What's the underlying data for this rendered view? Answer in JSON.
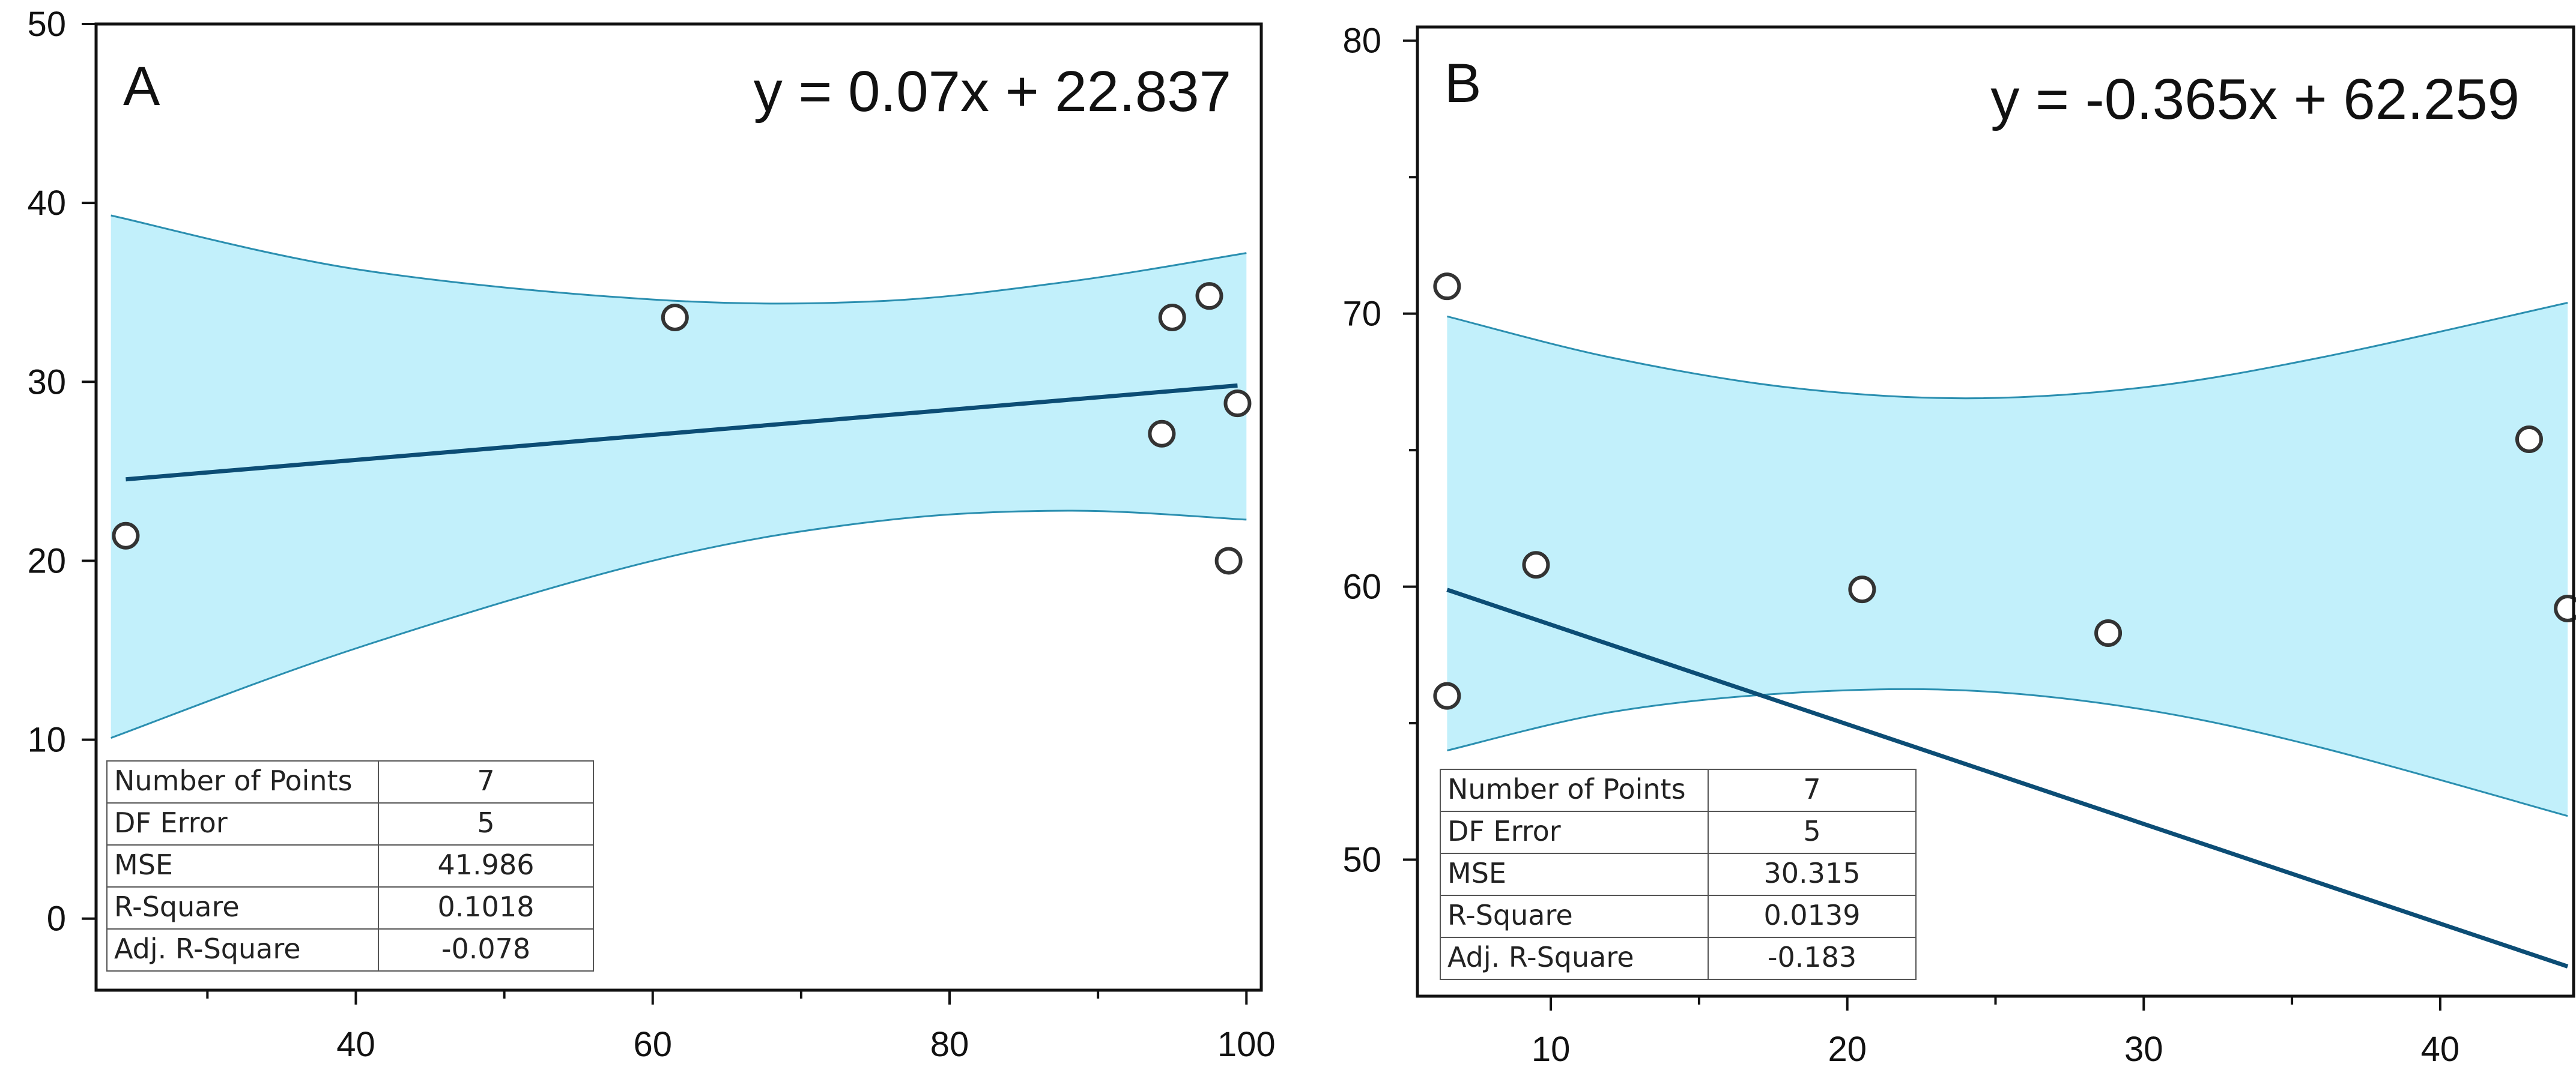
{
  "chart_data": [
    {
      "panel": "A",
      "type": "scatter",
      "title": "",
      "xlabel": "",
      "ylabel": "",
      "xlim": [
        22.5,
        101
      ],
      "ylim": [
        -4,
        50
      ],
      "xticks": [
        40,
        60,
        80,
        100
      ],
      "xminor": [
        30,
        50,
        70,
        90
      ],
      "yticks": [
        0,
        10,
        20,
        30,
        40,
        50
      ],
      "points": {
        "x": [
          24.5,
          61.5,
          94.3,
          95.0,
          97.5,
          98.8,
          99.4
        ],
        "y": [
          21.4,
          33.6,
          27.1,
          33.6,
          34.8,
          20.0,
          28.8
        ]
      },
      "fit": {
        "slope": 0.07,
        "intercept": 22.837,
        "x_start": 24.5,
        "x_end": 99.4
      },
      "band": {
        "x": [
          23.5,
          40,
          60,
          75,
          88,
          100
        ],
        "upper": [
          39.3,
          36.3,
          34.6,
          34.5,
          35.6,
          37.2
        ],
        "lower": [
          10.1,
          15.1,
          20.0,
          22.2,
          22.8,
          22.3
        ]
      },
      "equation": "y = 0.07x + 22.837",
      "stats": [
        {
          "label": "Number of Points",
          "value": "7"
        },
        {
          "label": "DF Error",
          "value": "5"
        },
        {
          "label": "MSE",
          "value": "41.986"
        },
        {
          "label": "R-Square",
          "value": "0.1018"
        },
        {
          "label": "Adj. R-Square",
          "value": "-0.078"
        }
      ]
    },
    {
      "panel": "B",
      "type": "scatter",
      "title": "",
      "xlabel": "",
      "ylabel": "",
      "xlim": [
        5.5,
        44.5
      ],
      "ylim": [
        45,
        80.5
      ],
      "xticks": [
        10,
        20,
        30,
        40
      ],
      "xminor": [
        15,
        25,
        35
      ],
      "yticks": [
        50,
        60,
        70,
        80
      ],
      "yminor": [
        55,
        65,
        75
      ],
      "points": {
        "x": [
          6.5,
          6.5,
          9.5,
          20.5,
          28.8,
          43.0,
          44.3
        ],
        "y": [
          71.0,
          56.0,
          60.8,
          59.9,
          58.3,
          65.4,
          59.2
        ]
      },
      "fit": {
        "slope": -0.365,
        "intercept": 62.259,
        "x_start": 6.5,
        "x_end": 44.3
      },
      "band": {
        "x": [
          6.5,
          12,
          18,
          24,
          30,
          36,
          44.3
        ],
        "upper": [
          69.9,
          68.4,
          67.3,
          66.9,
          67.3,
          68.4,
          70.4
        ],
        "lower": [
          54.0,
          55.4,
          56.1,
          56.2,
          55.5,
          54.1,
          51.6
        ]
      },
      "equation": "y = -0.365x + 62.259",
      "stats": [
        {
          "label": "Number of Points",
          "value": "7"
        },
        {
          "label": "DF Error",
          "value": "5"
        },
        {
          "label": "MSE",
          "value": "30.315"
        },
        {
          "label": "R-Square",
          "value": "0.0139"
        },
        {
          "label": "Adj. R-Square",
          "value": "-0.183"
        }
      ]
    }
  ],
  "colors": {
    "band_fill": "#c2f0fb",
    "band_edge": "#2b8fb0",
    "fit_line": "#0c4d75",
    "marker_edge": "#333333",
    "marker_fill": "#ffffff",
    "axis": "#111111"
  }
}
